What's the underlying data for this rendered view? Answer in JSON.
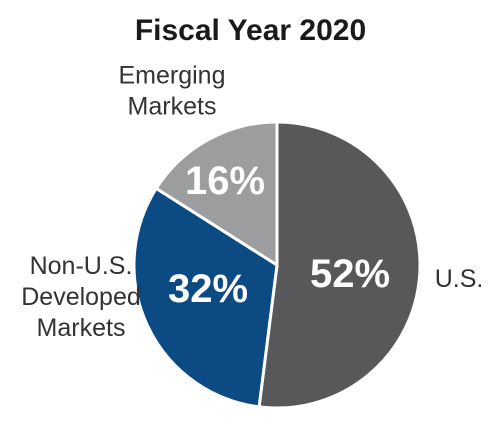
{
  "chart_data": {
    "type": "pie",
    "title": "Fiscal Year 2020",
    "slices": [
      {
        "label": "U.S.",
        "label_lines": [
          "U.S."
        ],
        "value": 52,
        "value_label": "52%",
        "color": "#58585a"
      },
      {
        "label": "Non-U.S. Developed Markets",
        "label_lines": [
          "Non-U.S.",
          "Developed",
          "Markets"
        ],
        "value": 32,
        "value_label": "32%",
        "color": "#0c4a84"
      },
      {
        "label": "Emerging Markets",
        "label_lines": [
          "Emerging",
          "Markets"
        ],
        "value": 16,
        "value_label": "16%",
        "color": "#9c9d9f"
      }
    ],
    "start_angle_deg": 0,
    "direction": "clockwise",
    "legend": "none"
  }
}
